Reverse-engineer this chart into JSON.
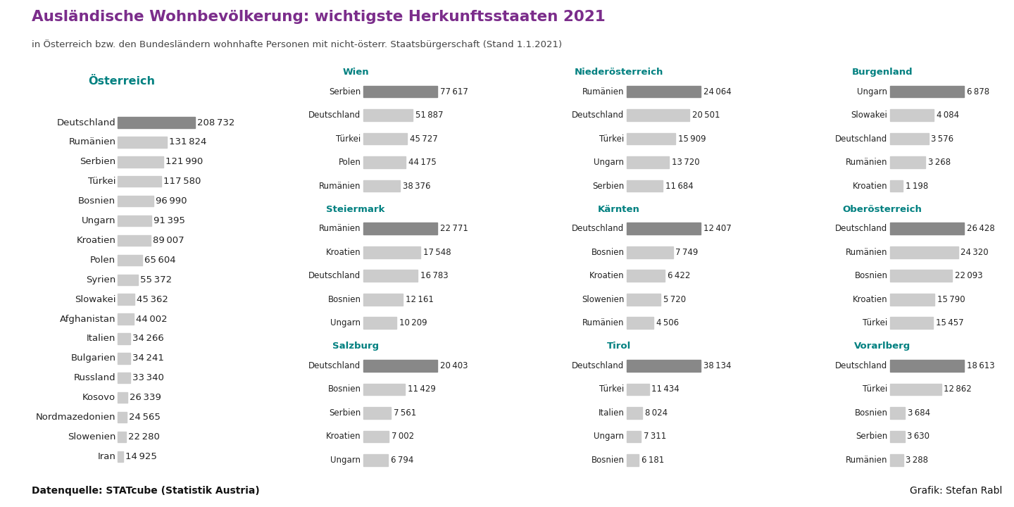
{
  "title": "Ausländische Wohnbevölkerung: wichtigste Herkunftsstaaten 2021",
  "subtitle": "in Österreich bzw. den Bundesländern wohnhafte Personen mit nicht-österr. Staatsbürgerschaft (Stand 1.1.2021)",
  "footer_left": "Datenquelle: STATcube (Statistik Austria)",
  "footer_right": "Grafik: Stefan Rabl",
  "title_color": "#7B2D8B",
  "subtitle_color": "#444444",
  "region_title_color": "#008080",
  "bar_color_dark": "#888888",
  "bar_color_light": "#CCCCCC",
  "background_color": "#FFFFFF",
  "footer_background": "#DCDCDC",
  "sidebar_color": "#AAAAAA",
  "regions": {
    "Österreich": {
      "countries": [
        "Deutschland",
        "Rumänien",
        "Serbien",
        "Türkei",
        "Bosnien",
        "Ungarn",
        "Kroatien",
        "Polen",
        "Syrien",
        "Slowakei",
        "Afghanistan",
        "Italien",
        "Bulgarien",
        "Russland",
        "Kosovo",
        "Nordmazedonien",
        "Slowenien",
        "Iran"
      ],
      "values": [
        208732,
        131824,
        121990,
        117580,
        96990,
        91395,
        89007,
        65604,
        55372,
        45362,
        44002,
        34266,
        34241,
        33340,
        26339,
        24565,
        22280,
        14925
      ],
      "max_val": 208732
    },
    "Wien": {
      "countries": [
        "Serbien",
        "Deutschland",
        "Türkei",
        "Polen",
        "Rumänien"
      ],
      "values": [
        77617,
        51887,
        45727,
        44175,
        38376
      ],
      "max_val": 77617
    },
    "Niederösterreich": {
      "countries": [
        "Rumänien",
        "Deutschland",
        "Türkei",
        "Ungarn",
        "Serbien"
      ],
      "values": [
        24064,
        20501,
        15909,
        13720,
        11684
      ],
      "max_val": 24064
    },
    "Burgenland": {
      "countries": [
        "Ungarn",
        "Slowakei",
        "Deutschland",
        "Rumänien",
        "Kroatien"
      ],
      "values": [
        6878,
        4084,
        3576,
        3268,
        1198
      ],
      "max_val": 6878
    },
    "Steiermark": {
      "countries": [
        "Rumänien",
        "Kroatien",
        "Deutschland",
        "Bosnien",
        "Ungarn"
      ],
      "values": [
        22771,
        17548,
        16783,
        12161,
        10209
      ],
      "max_val": 22771
    },
    "Kärnten": {
      "countries": [
        "Deutschland",
        "Bosnien",
        "Kroatien",
        "Slowenien",
        "Rumänien"
      ],
      "values": [
        12407,
        7749,
        6422,
        5720,
        4506
      ],
      "max_val": 12407
    },
    "Oberösterreich": {
      "countries": [
        "Deutschland",
        "Rumänien",
        "Bosnien",
        "Kroatien",
        "Türkei"
      ],
      "values": [
        26428,
        24320,
        22093,
        15790,
        15457
      ],
      "max_val": 26428
    },
    "Salzburg": {
      "countries": [
        "Deutschland",
        "Bosnien",
        "Serbien",
        "Kroatien",
        "Ungarn"
      ],
      "values": [
        20403,
        11429,
        7561,
        7002,
        6794
      ],
      "max_val": 20403
    },
    "Tirol": {
      "countries": [
        "Deutschland",
        "Türkei",
        "Italien",
        "Ungarn",
        "Bosnien"
      ],
      "values": [
        38134,
        11434,
        8024,
        7311,
        6181
      ],
      "max_val": 38134
    },
    "Vorarlberg": {
      "countries": [
        "Deutschland",
        "Türkei",
        "Bosnien",
        "Serbien",
        "Rumänien"
      ],
      "values": [
        18613,
        12862,
        3684,
        3630,
        3288
      ],
      "max_val": 18613
    }
  },
  "region_layout": [
    [
      "Wien",
      0,
      0
    ],
    [
      "Niederösterreich",
      1,
      0
    ],
    [
      "Burgenland",
      2,
      0
    ],
    [
      "Steiermark",
      0,
      1
    ],
    [
      "Kärnten",
      1,
      1
    ],
    [
      "Oberösterreich",
      2,
      1
    ],
    [
      "Salzburg",
      0,
      2
    ],
    [
      "Tirol",
      1,
      2
    ],
    [
      "Vorarlberg",
      2,
      2
    ]
  ]
}
